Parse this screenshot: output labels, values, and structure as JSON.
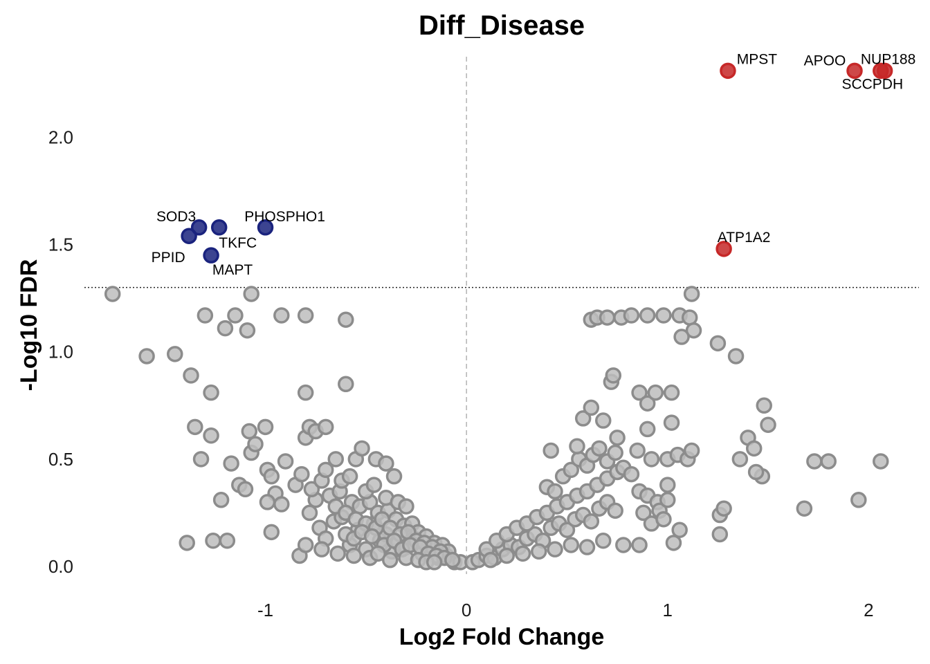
{
  "chart_data": {
    "type": "scatter",
    "title": "Diff_Disease",
    "xlabel": "Log2 Fold Change",
    "ylabel": "-Log10 FDR",
    "xlim": [
      -1.9,
      2.25
    ],
    "ylim": [
      -0.1,
      2.44
    ],
    "x_ticks": [
      "-1",
      "0",
      "1",
      "2"
    ],
    "y_ticks": [
      "0.0",
      "0.5",
      "1.0",
      "1.5",
      "2.0"
    ],
    "thresholds": {
      "vline_x": 0,
      "hline_y": 1.3
    },
    "grid": false,
    "colors": {
      "up": "#c62828",
      "down": "#1a237e",
      "ns": "#8c8c8c",
      "ns_fill": "#bdbdbd"
    },
    "series": [
      {
        "name": "up",
        "points": [
          {
            "x": 1.3,
            "y": 2.31,
            "label": "MPST"
          },
          {
            "x": 1.93,
            "y": 2.31,
            "label": "APOO"
          },
          {
            "x": 2.06,
            "y": 2.31,
            "label": "SCCPDH"
          },
          {
            "x": 2.08,
            "y": 2.31,
            "label": "NUP188"
          },
          {
            "x": 1.28,
            "y": 1.48,
            "label": "ATP1A2"
          }
        ]
      },
      {
        "name": "down",
        "points": [
          {
            "x": -1.33,
            "y": 1.58,
            "label": "SOD3"
          },
          {
            "x": -1.23,
            "y": 1.58,
            "label": "TKFC"
          },
          {
            "x": -1.0,
            "y": 1.58,
            "label": "PHOSPHO1"
          },
          {
            "x": -1.38,
            "y": 1.54,
            "label": "PPID"
          },
          {
            "x": -1.27,
            "y": 1.45,
            "label": "MAPT"
          }
        ]
      },
      {
        "name": "ns",
        "points": [
          [
            -1.76,
            1.27
          ],
          [
            -1.59,
            0.98
          ],
          [
            -1.45,
            0.99
          ],
          [
            -1.37,
            0.89
          ],
          [
            -1.3,
            1.17
          ],
          [
            -1.27,
            0.81
          ],
          [
            -1.2,
            1.11
          ],
          [
            -1.15,
            1.17
          ],
          [
            -1.09,
            1.1
          ],
          [
            -1.07,
            1.27
          ],
          [
            -0.92,
            1.17
          ],
          [
            -0.8,
            1.17
          ],
          [
            -0.6,
            1.15
          ],
          [
            -1.35,
            0.65
          ],
          [
            -1.32,
            0.5
          ],
          [
            -1.27,
            0.61
          ],
          [
            -1.22,
            0.31
          ],
          [
            -1.17,
            0.48
          ],
          [
            -1.13,
            0.38
          ],
          [
            -1.1,
            0.36
          ],
          [
            -1.08,
            0.63
          ],
          [
            -1.07,
            0.53
          ],
          [
            -1.05,
            0.57
          ],
          [
            -1.0,
            0.65
          ],
          [
            -0.99,
            0.45
          ],
          [
            -0.97,
            0.42
          ],
          [
            -0.95,
            0.34
          ],
          [
            -0.92,
            0.29
          ],
          [
            -0.9,
            0.49
          ],
          [
            -0.8,
            0.81
          ],
          [
            -0.8,
            0.6
          ],
          [
            -0.78,
            0.65
          ],
          [
            -0.75,
            0.63
          ],
          [
            -0.7,
            0.65
          ],
          [
            -0.65,
            0.5
          ],
          [
            -0.6,
            0.85
          ],
          [
            -0.55,
            0.5
          ],
          [
            -0.52,
            0.55
          ],
          [
            -0.45,
            0.5
          ],
          [
            -0.4,
            0.48
          ],
          [
            -0.36,
            0.42
          ],
          [
            -1.39,
            0.11
          ],
          [
            -1.26,
            0.12
          ],
          [
            -1.19,
            0.12
          ],
          [
            -0.99,
            0.3
          ],
          [
            -0.97,
            0.16
          ],
          [
            -0.83,
            0.05
          ],
          [
            -0.78,
            0.25
          ],
          [
            -0.75,
            0.31
          ],
          [
            -0.73,
            0.18
          ],
          [
            -0.7,
            0.13
          ],
          [
            -0.66,
            0.21
          ],
          [
            -0.62,
            0.23
          ],
          [
            -0.58,
            0.1
          ],
          [
            -0.54,
            0.17
          ],
          [
            -0.5,
            0.08
          ],
          [
            -0.46,
            0.2
          ],
          [
            -0.43,
            0.12
          ],
          [
            -0.4,
            0.15
          ],
          [
            -0.37,
            0.07
          ],
          [
            -0.34,
            0.11
          ],
          [
            -0.3,
            0.09
          ],
          [
            -0.26,
            0.13
          ],
          [
            -0.22,
            0.06
          ],
          [
            -0.18,
            0.08
          ],
          [
            -0.14,
            0.04
          ],
          [
            -0.1,
            0.05
          ],
          [
            -0.06,
            0.02
          ],
          [
            -0.03,
            0.02
          ],
          [
            -0.85,
            0.38
          ],
          [
            -0.82,
            0.43
          ],
          [
            -0.77,
            0.36
          ],
          [
            -0.72,
            0.4
          ],
          [
            -0.68,
            0.33
          ],
          [
            -0.63,
            0.35
          ],
          [
            -0.57,
            0.3
          ],
          [
            -0.53,
            0.28
          ],
          [
            -0.48,
            0.3
          ],
          [
            -0.44,
            0.25
          ],
          [
            -0.39,
            0.26
          ],
          [
            -0.35,
            0.22
          ],
          [
            -0.31,
            0.19
          ],
          [
            -0.27,
            0.2
          ],
          [
            -0.24,
            0.16
          ],
          [
            -0.2,
            0.14
          ],
          [
            -0.16,
            0.11
          ],
          [
            -0.12,
            0.1
          ],
          [
            -0.09,
            0.07
          ],
          [
            -0.65,
            0.28
          ],
          [
            -0.6,
            0.25
          ],
          [
            -0.55,
            0.22
          ],
          [
            -0.5,
            0.2
          ],
          [
            -0.45,
            0.18
          ],
          [
            -0.42,
            0.22
          ],
          [
            -0.38,
            0.18
          ],
          [
            -0.33,
            0.15
          ],
          [
            -0.29,
            0.16
          ],
          [
            -0.25,
            0.12
          ],
          [
            -0.21,
            0.11
          ],
          [
            -0.17,
            0.09
          ],
          [
            -0.13,
            0.07
          ],
          [
            -0.6,
            0.15
          ],
          [
            -0.56,
            0.13
          ],
          [
            -0.52,
            0.16
          ],
          [
            -0.47,
            0.14
          ],
          [
            -0.41,
            0.1
          ],
          [
            -0.36,
            0.12
          ],
          [
            -0.32,
            0.08
          ],
          [
            -0.28,
            0.1
          ],
          [
            -0.23,
            0.09
          ],
          [
            -0.19,
            0.06
          ],
          [
            -0.15,
            0.05
          ],
          [
            -0.11,
            0.04
          ],
          [
            -0.07,
            0.03
          ],
          [
            -0.8,
            0.1
          ],
          [
            -0.72,
            0.08
          ],
          [
            -0.64,
            0.06
          ],
          [
            -0.56,
            0.05
          ],
          [
            -0.48,
            0.04
          ],
          [
            -0.44,
            0.06
          ],
          [
            -0.38,
            0.03
          ],
          [
            -0.3,
            0.04
          ],
          [
            -0.24,
            0.03
          ],
          [
            -0.2,
            0.02
          ],
          [
            -0.16,
            0.02
          ],
          [
            -0.7,
            0.45
          ],
          [
            -0.62,
            0.4
          ],
          [
            -0.58,
            0.42
          ],
          [
            -0.5,
            0.35
          ],
          [
            -0.46,
            0.38
          ],
          [
            -0.4,
            0.32
          ],
          [
            -0.34,
            0.3
          ],
          [
            -0.3,
            0.28
          ],
          [
            0.03,
            0.02
          ],
          [
            0.06,
            0.03
          ],
          [
            0.1,
            0.05
          ],
          [
            0.14,
            0.04
          ],
          [
            0.18,
            0.08
          ],
          [
            0.22,
            0.1
          ],
          [
            0.26,
            0.09
          ],
          [
            0.3,
            0.13
          ],
          [
            0.34,
            0.15
          ],
          [
            0.38,
            0.12
          ],
          [
            0.42,
            0.18
          ],
          [
            0.46,
            0.2
          ],
          [
            0.5,
            0.17
          ],
          [
            0.54,
            0.22
          ],
          [
            0.58,
            0.24
          ],
          [
            0.62,
            0.21
          ],
          [
            0.66,
            0.27
          ],
          [
            0.7,
            0.3
          ],
          [
            0.74,
            0.26
          ],
          [
            0.1,
            0.08
          ],
          [
            0.15,
            0.12
          ],
          [
            0.2,
            0.15
          ],
          [
            0.25,
            0.18
          ],
          [
            0.3,
            0.2
          ],
          [
            0.35,
            0.23
          ],
          [
            0.4,
            0.25
          ],
          [
            0.45,
            0.28
          ],
          [
            0.5,
            0.3
          ],
          [
            0.55,
            0.33
          ],
          [
            0.6,
            0.35
          ],
          [
            0.65,
            0.38
          ],
          [
            0.7,
            0.41
          ],
          [
            0.75,
            0.44
          ],
          [
            0.12,
            0.03
          ],
          [
            0.2,
            0.05
          ],
          [
            0.28,
            0.06
          ],
          [
            0.36,
            0.07
          ],
          [
            0.44,
            0.08
          ],
          [
            0.52,
            0.1
          ],
          [
            0.6,
            0.09
          ],
          [
            0.68,
            0.12
          ],
          [
            0.78,
            0.1
          ],
          [
            0.86,
            0.1
          ],
          [
            0.4,
            0.37
          ],
          [
            0.44,
            0.35
          ],
          [
            0.48,
            0.42
          ],
          [
            0.52,
            0.45
          ],
          [
            0.56,
            0.5
          ],
          [
            0.6,
            0.47
          ],
          [
            0.63,
            0.52
          ],
          [
            0.66,
            0.55
          ],
          [
            0.7,
            0.49
          ],
          [
            0.74,
            0.53
          ],
          [
            0.78,
            0.46
          ],
          [
            0.82,
            0.43
          ],
          [
            0.86,
            0.35
          ],
          [
            0.9,
            0.33
          ],
          [
            0.95,
            0.3
          ],
          [
            0.88,
            0.25
          ],
          [
            0.92,
            0.2
          ],
          [
            0.96,
            0.26
          ],
          [
            0.42,
            0.54
          ],
          [
            0.55,
            0.56
          ],
          [
            0.58,
            0.69
          ],
          [
            0.62,
            0.74
          ],
          [
            0.68,
            0.68
          ],
          [
            0.72,
            0.86
          ],
          [
            0.73,
            0.89
          ],
          [
            0.75,
            0.6
          ],
          [
            0.86,
            0.81
          ],
          [
            0.9,
            0.76
          ],
          [
            0.94,
            0.81
          ],
          [
            1.02,
            0.81
          ],
          [
            0.9,
            0.64
          ],
          [
            0.85,
            0.54
          ],
          [
            0.92,
            0.5
          ],
          [
            1.0,
            0.5
          ],
          [
            1.05,
            0.52
          ],
          [
            1.1,
            0.5
          ],
          [
            1.12,
            0.54
          ],
          [
            1.02,
            0.67
          ],
          [
            1.0,
            0.38
          ],
          [
            1.0,
            0.31
          ],
          [
            0.98,
            0.22
          ],
          [
            1.06,
            0.17
          ],
          [
            1.03,
            0.11
          ],
          [
            0.62,
            1.15
          ],
          [
            0.65,
            1.16
          ],
          [
            0.7,
            1.16
          ],
          [
            0.77,
            1.16
          ],
          [
            0.82,
            1.17
          ],
          [
            0.9,
            1.17
          ],
          [
            0.98,
            1.17
          ],
          [
            1.06,
            1.17
          ],
          [
            1.11,
            1.16
          ],
          [
            1.12,
            1.27
          ],
          [
            1.13,
            1.1
          ],
          [
            1.07,
            1.07
          ],
          [
            1.25,
            1.04
          ],
          [
            1.34,
            0.98
          ],
          [
            1.26,
            0.24
          ],
          [
            1.28,
            0.27
          ],
          [
            1.26,
            0.15
          ],
          [
            1.36,
            0.5
          ],
          [
            1.4,
            0.6
          ],
          [
            1.43,
            0.55
          ],
          [
            1.47,
            0.42
          ],
          [
            1.5,
            0.66
          ],
          [
            1.48,
            0.75
          ],
          [
            1.68,
            0.27
          ],
          [
            1.73,
            0.49
          ],
          [
            1.8,
            0.49
          ],
          [
            1.95,
            0.31
          ],
          [
            2.06,
            0.49
          ],
          [
            1.44,
            0.44
          ]
        ]
      }
    ]
  }
}
